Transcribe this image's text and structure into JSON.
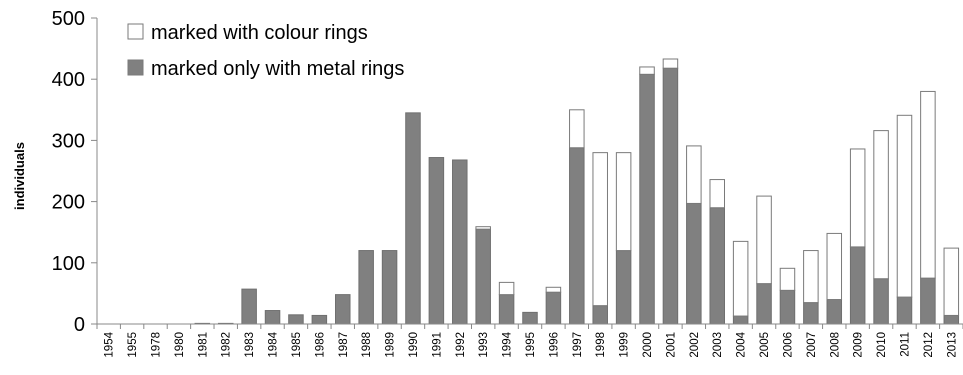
{
  "chart_data": {
    "type": "bar",
    "stacked": true,
    "title": "",
    "xlabel": "",
    "ylabel": "individuals",
    "ylim": [
      0,
      500
    ],
    "yticks": [
      0,
      100,
      200,
      300,
      400,
      500
    ],
    "grid": false,
    "legend_position": "top-left",
    "categories": [
      "1954",
      "1955",
      "1978",
      "1980",
      "1981",
      "1982",
      "1983",
      "1984",
      "1985",
      "1986",
      "1987",
      "1988",
      "1989",
      "1990",
      "1991",
      "1992",
      "1993",
      "1994",
      "1995",
      "1996",
      "1997",
      "1998",
      "1999",
      "2000",
      "2001",
      "2002",
      "2003",
      "2004",
      "2005",
      "2006",
      "2007",
      "2008",
      "2009",
      "2010",
      "2011",
      "2012",
      "2013"
    ],
    "series": [
      {
        "name": "marked only with metal rings",
        "color": "#808080",
        "values": [
          0,
          0,
          0,
          0,
          1,
          1,
          57,
          22,
          15,
          14,
          48,
          120,
          120,
          345,
          272,
          268,
          155,
          48,
          19,
          52,
          288,
          30,
          120,
          408,
          418,
          197,
          190,
          13,
          66,
          55,
          35,
          40,
          126,
          74,
          44,
          75,
          14
        ]
      },
      {
        "name": "marked with colour rings",
        "color": "#ffffff",
        "values": [
          0,
          0,
          0,
          0,
          0,
          0,
          0,
          0,
          0,
          0,
          0,
          0,
          0,
          0,
          0,
          0,
          4,
          20,
          0,
          8,
          62,
          250,
          160,
          12,
          15,
          94,
          46,
          122,
          143,
          36,
          85,
          108,
          160,
          242,
          297,
          305,
          110
        ]
      }
    ]
  }
}
